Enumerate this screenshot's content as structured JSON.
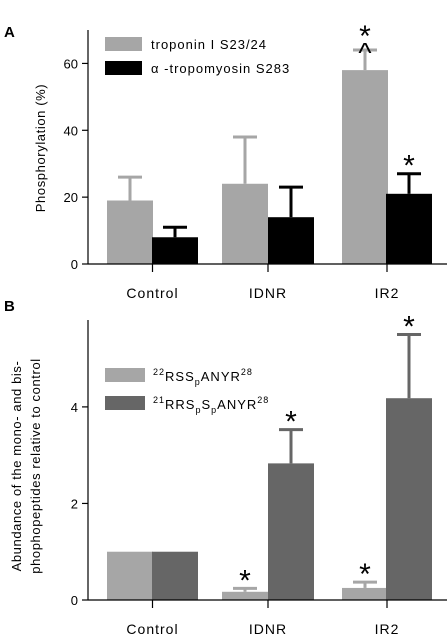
{
  "chart_data": [
    {
      "panel": "A",
      "type": "bar",
      "categories": [
        "Control",
        "IDNR",
        "IR2"
      ],
      "ylabel": "Phosphorylation (%)",
      "ylim": [
        0,
        70
      ],
      "yticks": [
        0,
        20,
        40,
        60
      ],
      "grid": false,
      "legend_position": "top-left",
      "series": [
        {
          "name": "troponin I S23/24",
          "color": "#a6a6a6",
          "values": [
            19,
            24,
            58
          ],
          "errors": [
            7,
            14,
            6
          ]
        },
        {
          "name": "α -tropomyosin S283",
          "color": "#000000",
          "values": [
            8,
            14,
            21
          ],
          "errors": [
            3,
            9,
            6
          ]
        }
      ],
      "annotations": [
        {
          "category": "IR2",
          "series": 0,
          "text": "*^"
        },
        {
          "category": "IR2",
          "series": 1,
          "text": "*"
        }
      ]
    },
    {
      "panel": "B",
      "type": "bar",
      "categories": [
        "Control",
        "IDNR",
        "IR2"
      ],
      "ylabel": "Abundance of the mono- and bis-phophopeptides relative to control",
      "ylabel_lines": [
        "Abundance of the mono- and bis-",
        "phophopeptides relative to control"
      ],
      "ylim": [
        0,
        5.8
      ],
      "yticks": [
        0,
        2,
        4
      ],
      "grid": false,
      "legend_position": "top-left",
      "series": [
        {
          "name": "22RSSpANYR28",
          "color": "#a6a6a6",
          "values": [
            1.0,
            0.17,
            0.25
          ],
          "errors": [
            0,
            0.07,
            0.12
          ]
        },
        {
          "name": "21RRSpSpANYR28",
          "color": "#666666",
          "values": [
            1.0,
            2.83,
            4.18
          ],
          "errors": [
            0,
            0.7,
            1.32
          ]
        }
      ],
      "annotations": [
        {
          "category": "IDNR",
          "series": 0,
          "text": "*"
        },
        {
          "category": "IDNR",
          "series": 1,
          "text": "*"
        },
        {
          "category": "IR2",
          "series": 0,
          "text": "*"
        },
        {
          "category": "IR2",
          "series": 1,
          "text": "*"
        }
      ]
    }
  ],
  "panel_labels": [
    "A",
    "B"
  ],
  "legends": {
    "A": [
      {
        "label": "troponin I S23/24",
        "color": "#a6a6a6"
      },
      {
        "label": "α -tropomyosin S283",
        "color": "#000000"
      }
    ],
    "B": [
      {
        "pre": "22",
        "seq1": "RSS",
        "sub1": "p",
        "seq2": "ANYR",
        "post": "28",
        "color": "#a6a6a6"
      },
      {
        "pre": "21",
        "seq1": "RRS",
        "sub1": "p",
        "seq2": "S",
        "sub2": "p",
        "seq3": "ANYR",
        "post": "28",
        "color": "#666666"
      }
    ]
  }
}
